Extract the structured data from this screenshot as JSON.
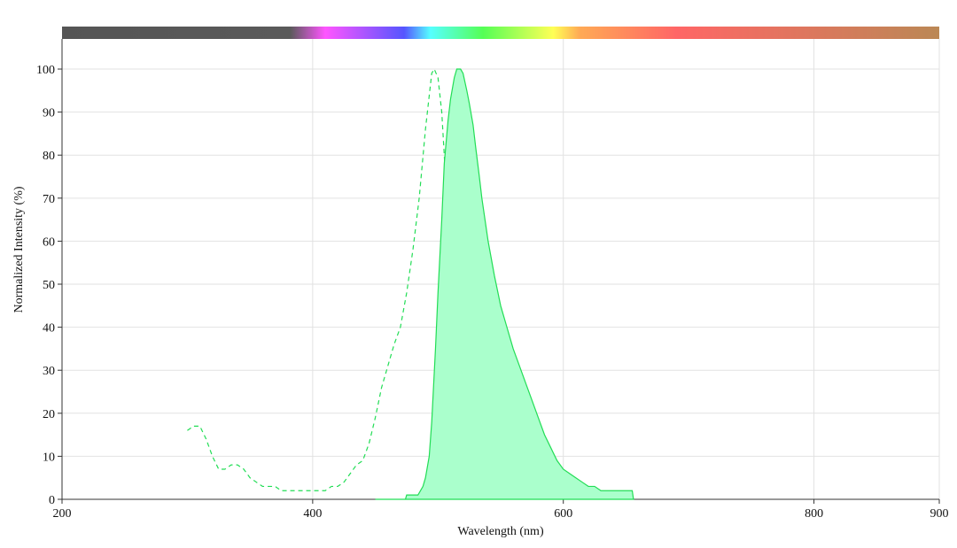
{
  "chart_data": {
    "type": "line",
    "x_label": "Wavelength (nm)",
    "y_label": "Normalized Intensity (%)",
    "xlim": [
      200,
      900
    ],
    "xticks": [
      200,
      400,
      600,
      800,
      900
    ],
    "ylim": [
      0,
      107
    ],
    "yticks": [
      0,
      10,
      20,
      30,
      40,
      50,
      60,
      70,
      80,
      90,
      100
    ],
    "grid": true,
    "series": [
      {
        "color": "#22dd55",
        "dashed": true,
        "filled": false,
        "x": [
          300,
          305,
          310,
          315,
          320,
          325,
          330,
          335,
          340,
          345,
          350,
          355,
          360,
          370,
          375,
          380,
          390,
          400,
          410,
          415,
          420,
          425,
          430,
          435,
          440,
          445,
          450,
          455,
          460,
          465,
          470,
          475,
          480,
          485,
          490,
          495,
          497,
          500,
          503,
          505,
          508,
          510,
          513,
          515,
          518,
          520,
          525,
          530,
          535,
          540
        ],
        "values": [
          16,
          17,
          17,
          14,
          10,
          7,
          7,
          8,
          8,
          7,
          5,
          4,
          3,
          3,
          2,
          2,
          2,
          2,
          2,
          3,
          3,
          4,
          6,
          8,
          9,
          13,
          19,
          26,
          31,
          36,
          40,
          48,
          58,
          70,
          86,
          99,
          100,
          98,
          90,
          80,
          62,
          50,
          36,
          28,
          18,
          12,
          6,
          3,
          1,
          0
        ]
      },
      {
        "color": "#22dd55",
        "dashed": false,
        "filled": true,
        "fill_color": "#aaffcc",
        "x": [
          450,
          474,
          475,
          484,
          486,
          488,
          490,
          493,
          495,
          498,
          500,
          503,
          505,
          508,
          510,
          513,
          515,
          518,
          520,
          523,
          525,
          528,
          530,
          533,
          535,
          540,
          545,
          550,
          555,
          560,
          565,
          570,
          575,
          580,
          585,
          590,
          595,
          600,
          605,
          610,
          615,
          620,
          625,
          630,
          640,
          645,
          655,
          656
        ],
        "values": [
          0,
          0,
          1,
          1,
          2,
          3,
          5,
          10,
          18,
          35,
          48,
          65,
          78,
          88,
          93,
          98,
          100,
          100,
          99,
          95,
          92,
          87,
          82,
          75,
          70,
          60,
          52,
          45,
          40,
          35,
          31,
          27,
          23,
          19,
          15,
          12,
          9,
          7,
          6,
          5,
          4,
          3,
          3,
          2,
          2,
          2,
          2,
          0
        ]
      }
    ]
  }
}
